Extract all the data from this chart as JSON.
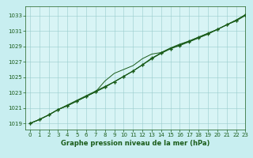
{
  "title": "Graphe pression niveau de la mer (hPa)",
  "xlabel": "Graphe pression niveau de la mer (hPa)",
  "bg_color": "#c8eef0",
  "plot_bg_color": "#d8f4f5",
  "grid_color": "#99cccc",
  "line_color": "#1a5c1a",
  "marker_color": "#1a5c1a",
  "xlim": [
    -0.5,
    23
  ],
  "ylim": [
    1018.2,
    1034.2
  ],
  "xticks": [
    0,
    1,
    2,
    3,
    4,
    5,
    6,
    7,
    8,
    9,
    10,
    11,
    12,
    13,
    14,
    15,
    16,
    17,
    18,
    19,
    20,
    21,
    22,
    23
  ],
  "yticks": [
    1019,
    1021,
    1023,
    1025,
    1027,
    1029,
    1031,
    1033
  ],
  "series": [
    {
      "x": [
        0,
        1,
        2,
        3,
        4,
        5,
        6,
        7,
        8,
        9,
        10,
        11,
        12,
        13,
        14,
        15,
        16,
        17,
        18,
        19,
        20,
        21,
        22,
        23
      ],
      "y": [
        1019.0,
        1019.5,
        1020.1,
        1020.8,
        1021.3,
        1021.9,
        1022.5,
        1023.1,
        1023.7,
        1024.4,
        1025.1,
        1025.8,
        1026.6,
        1027.4,
        1028.1,
        1028.7,
        1029.1,
        1029.6,
        1030.1,
        1030.6,
        1031.2,
        1031.8,
        1032.4,
        1033.1
      ],
      "with_markers": true
    },
    {
      "x": [
        0,
        1,
        2,
        3,
        4,
        5,
        6,
        7,
        8,
        9,
        10,
        11,
        12,
        13,
        14,
        15,
        16,
        17,
        18,
        19,
        20,
        21,
        22,
        23
      ],
      "y": [
        1019.0,
        1019.5,
        1020.1,
        1020.8,
        1021.3,
        1021.9,
        1022.5,
        1023.1,
        1024.5,
        1025.5,
        1026.0,
        1026.5,
        1027.4,
        1028.0,
        1028.2,
        1028.7,
        1029.2,
        1029.6,
        1030.1,
        1030.6,
        1031.2,
        1031.8,
        1032.3,
        1033.0
      ],
      "with_markers": false
    },
    {
      "x": [
        0,
        1,
        2,
        3,
        4,
        5,
        6,
        7,
        8,
        9,
        10,
        11,
        12,
        13,
        14,
        15,
        16,
        17,
        18,
        19,
        20,
        21,
        22,
        23
      ],
      "y": [
        1019.0,
        1019.5,
        1020.1,
        1020.8,
        1021.4,
        1022.0,
        1022.6,
        1023.2,
        1023.8,
        1024.4,
        1025.1,
        1025.8,
        1026.6,
        1027.4,
        1028.2,
        1028.8,
        1029.3,
        1029.7,
        1030.2,
        1030.7,
        1031.2,
        1031.8,
        1032.4,
        1033.1
      ],
      "with_markers": false
    },
    {
      "x": [
        0,
        1,
        2,
        3,
        4,
        5,
        6,
        7,
        8,
        9,
        10,
        11,
        12,
        13,
        14,
        15,
        16,
        17,
        18,
        19,
        20,
        21,
        22,
        23
      ],
      "y": [
        1019.0,
        1019.5,
        1020.1,
        1020.8,
        1021.3,
        1021.9,
        1022.5,
        1023.1,
        1023.7,
        1024.4,
        1025.1,
        1025.8,
        1026.6,
        1027.5,
        1028.1,
        1028.7,
        1029.2,
        1029.7,
        1030.2,
        1030.7,
        1031.2,
        1031.8,
        1032.4,
        1033.1
      ],
      "with_markers": true
    }
  ],
  "figsize": [
    3.2,
    2.0
  ],
  "dpi": 100
}
